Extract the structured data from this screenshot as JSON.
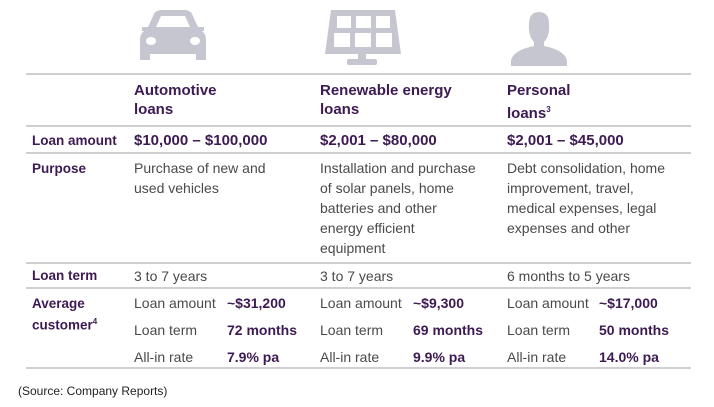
{
  "icons": {
    "color": "#c6c6d0",
    "items": [
      "car-icon",
      "solar-panel-icon",
      "person-icon"
    ]
  },
  "columns": [
    {
      "title_line1": "Automotive",
      "title_line2": "loans",
      "sup": "",
      "amount": "$10,000 – $100,000",
      "purpose": [
        "Purchase of new and",
        "used vehicles"
      ],
      "term": "3 to 7 years",
      "avg": {
        "amount": "~$31,200",
        "term": "72 months",
        "rate": "7.9% pa"
      }
    },
    {
      "title_line1": "Renewable energy",
      "title_line2": "loans",
      "sup": "",
      "amount": "$2,001 – $80,000",
      "purpose": [
        "Installation and purchase",
        "of solar panels, home",
        "batteries and other",
        "energy efficient",
        "equipment"
      ],
      "term": "3 to 7 years",
      "avg": {
        "amount": "~$9,300",
        "term": "69 months",
        "rate": "9.9% pa"
      }
    },
    {
      "title_line1": "Personal",
      "title_line2": "loans",
      "sup": "3",
      "amount": "$2,001 – $45,000",
      "purpose": [
        "Debt consolidation, home",
        "improvement, travel,",
        "medical expenses, legal",
        "expenses and other"
      ],
      "term": "6 months to 5 years",
      "avg": {
        "amount": "~$17,000",
        "term": "50 months",
        "rate": "14.0% pa"
      }
    }
  ],
  "rows": {
    "amount": "Loan amount",
    "purpose": "Purpose",
    "term": "Loan term",
    "avg_line1": "Average",
    "avg_line2": "customer",
    "avg_sup": "4"
  },
  "avg_labels": {
    "amount": "Loan amount",
    "term": "Loan term",
    "rate": "All-in rate"
  },
  "source": "(Source: Company Reports)",
  "colors": {
    "accent": "#3d1a52",
    "text": "#4a4a4a",
    "rule": "#cfcfd2"
  }
}
